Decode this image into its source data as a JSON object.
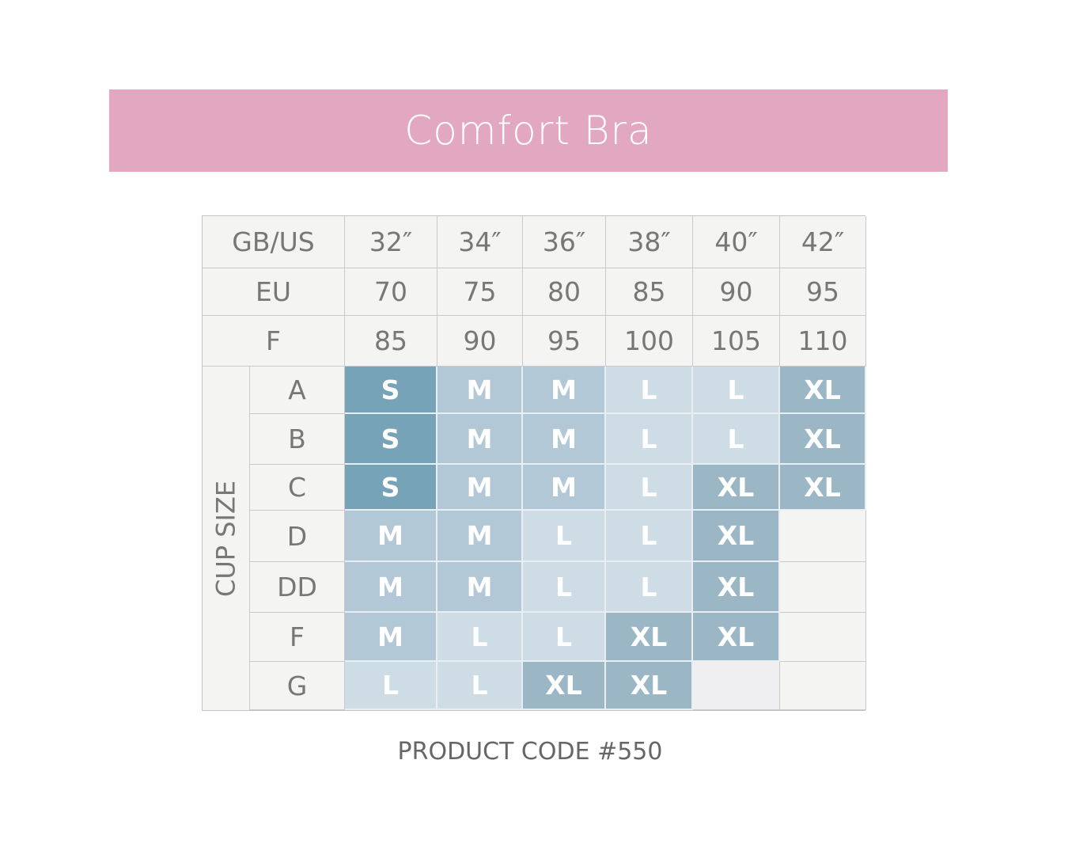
{
  "title": "Comfort Bra",
  "header_rows": [
    {
      "label": "GB/US",
      "values": [
        "32″",
        "34″",
        "36″",
        "38″",
        "40″",
        "42″"
      ]
    },
    {
      "label": "EU",
      "values": [
        "70",
        "75",
        "80",
        "85",
        "90",
        "95"
      ]
    },
    {
      "label": "F",
      "values": [
        "85",
        "90",
        "95",
        "100",
        "105",
        "110"
      ]
    }
  ],
  "cup_size_label": "CUP SIZE",
  "cups": [
    {
      "cup": "A",
      "sizes": [
        "S",
        "M",
        "M",
        "L",
        "L",
        "XL"
      ]
    },
    {
      "cup": "B",
      "sizes": [
        "S",
        "M",
        "M",
        "L",
        "L",
        "XL"
      ]
    },
    {
      "cup": "C",
      "sizes": [
        "S",
        "M",
        "M",
        "L",
        "XL",
        "XL"
      ]
    },
    {
      "cup": "D",
      "sizes": [
        "M",
        "M",
        "L",
        "L",
        "XL",
        ""
      ]
    },
    {
      "cup": "DD",
      "sizes": [
        "M",
        "M",
        "L",
        "L",
        "XL",
        ""
      ]
    },
    {
      "cup": "F",
      "sizes": [
        "M",
        "L",
        "L",
        "XL",
        "XL",
        ""
      ]
    },
    {
      "cup": "G",
      "sizes": [
        "L",
        "L",
        "XL",
        "XL",
        "",
        ""
      ]
    }
  ],
  "size_colors": {
    "S": "#77a3b8",
    "M": "#b3c8d6",
    "L": "#cddce5",
    "XL": "#9bb7c6",
    "empty": "#f4f4f2",
    "G-40": "#efeff1"
  },
  "product_code": "PRODUCT CODE #550"
}
